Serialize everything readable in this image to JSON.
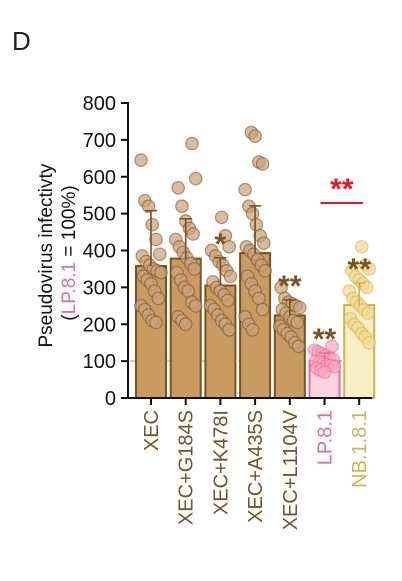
{
  "panel_label": "D",
  "chart_data": {
    "type": "bar",
    "ylabel_line1": "Pseudovirus infectivty",
    "ylabel_line2_open": "(",
    "ylabel_line2_highlight": "LP.8.1",
    "ylabel_line2_rest": " = 100%)",
    "ylim": [
      0,
      800
    ],
    "yticks": [
      "0",
      "100",
      "200",
      "300",
      "400",
      "500",
      "600",
      "700",
      "800"
    ],
    "reference_line": 100,
    "categories": [
      "XEC",
      "XEC+G184S",
      "XEC+K478I",
      "XEC+A435S",
      "XEC+L1104V",
      "LP.8.1",
      "NB.1.8.1"
    ],
    "values": [
      358,
      378,
      305,
      393,
      224,
      100,
      252
    ],
    "errors": [
      150,
      108,
      75,
      128,
      42,
      22,
      60
    ],
    "significance": [
      "",
      "",
      "*",
      "",
      "**",
      "**",
      "**"
    ],
    "comparison_bracket": {
      "from": "LP.8.1",
      "to": "NB.1.8.1",
      "label": "**"
    },
    "points": [
      [
        645,
        535,
        520,
        470,
        430,
        390,
        385,
        370,
        360,
        350,
        345,
        340,
        330,
        320,
        310,
        290,
        270,
        250,
        240,
        225,
        210,
        205
      ],
      [
        690,
        595,
        570,
        520,
        480,
        460,
        445,
        430,
        410,
        395,
        380,
        365,
        350,
        340,
        320,
        300,
        290,
        260,
        250,
        220,
        210,
        200
      ],
      [
        490,
        440,
        410,
        400,
        385,
        370,
        360,
        345,
        330,
        315,
        300,
        290,
        280,
        265,
        250,
        240,
        225,
        210,
        200,
        185
      ],
      [
        720,
        710,
        640,
        635,
        565,
        520,
        500,
        470,
        440,
        420,
        410,
        400,
        390,
        375,
        360,
        345,
        330,
        310,
        290,
        270,
        240,
        220,
        200,
        185
      ],
      [
        300,
        270,
        260,
        255,
        250,
        245,
        240,
        230,
        220,
        210,
        205,
        195,
        185,
        175,
        165,
        150,
        140
      ],
      [
        140,
        130,
        125,
        120,
        115,
        110,
        105,
        100,
        98,
        95,
        90,
        88,
        85,
        80,
        75,
        70
      ],
      [
        410,
        360,
        350,
        345,
        330,
        320,
        310,
        300,
        290,
        270,
        260,
        250,
        240,
        230,
        215,
        200,
        190,
        175,
        165,
        150
      ]
    ],
    "colors": {
      "xec_fill": "#C99A62",
      "xec_stroke": "#7A5220",
      "xec_point": "#C9A27C",
      "lp_fill": "#FAD4DF",
      "lp_stroke": "#E96A95",
      "lp_point": "#F7A7C0",
      "nb_fill": "#FBEFC5",
      "nb_stroke": "#D4B24A",
      "nb_point": "#F1DA93",
      "bracket": "#E8171F",
      "ref_line": "#AAAAAA"
    }
  }
}
